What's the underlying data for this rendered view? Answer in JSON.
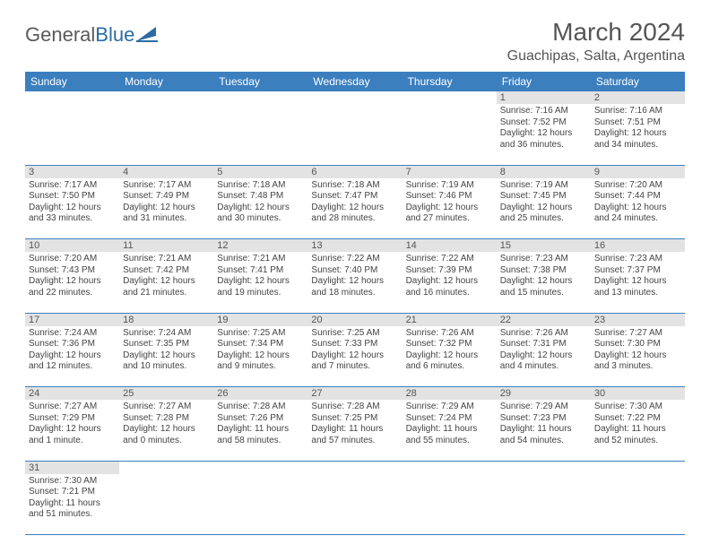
{
  "logo": {
    "text1": "General",
    "text2": "Blue"
  },
  "title": "March 2024",
  "location": "Guachipas, Salta, Argentina",
  "weekdays": [
    "Sunday",
    "Monday",
    "Tuesday",
    "Wednesday",
    "Thursday",
    "Friday",
    "Saturday"
  ],
  "colors": {
    "header_bg": "#3b7fbf",
    "header_fg": "#ffffff",
    "daynum_bg": "#e3e3e3",
    "rule": "#3b7fbf",
    "text": "#444444",
    "title": "#555555"
  },
  "weeks": [
    [
      null,
      null,
      null,
      null,
      null,
      {
        "n": "1",
        "sr": "7:16 AM",
        "ss": "7:52 PM",
        "dl": "12 hours and 36 minutes."
      },
      {
        "n": "2",
        "sr": "7:16 AM",
        "ss": "7:51 PM",
        "dl": "12 hours and 34 minutes."
      }
    ],
    [
      {
        "n": "3",
        "sr": "7:17 AM",
        "ss": "7:50 PM",
        "dl": "12 hours and 33 minutes."
      },
      {
        "n": "4",
        "sr": "7:17 AM",
        "ss": "7:49 PM",
        "dl": "12 hours and 31 minutes."
      },
      {
        "n": "5",
        "sr": "7:18 AM",
        "ss": "7:48 PM",
        "dl": "12 hours and 30 minutes."
      },
      {
        "n": "6",
        "sr": "7:18 AM",
        "ss": "7:47 PM",
        "dl": "12 hours and 28 minutes."
      },
      {
        "n": "7",
        "sr": "7:19 AM",
        "ss": "7:46 PM",
        "dl": "12 hours and 27 minutes."
      },
      {
        "n": "8",
        "sr": "7:19 AM",
        "ss": "7:45 PM",
        "dl": "12 hours and 25 minutes."
      },
      {
        "n": "9",
        "sr": "7:20 AM",
        "ss": "7:44 PM",
        "dl": "12 hours and 24 minutes."
      }
    ],
    [
      {
        "n": "10",
        "sr": "7:20 AM",
        "ss": "7:43 PM",
        "dl": "12 hours and 22 minutes."
      },
      {
        "n": "11",
        "sr": "7:21 AM",
        "ss": "7:42 PM",
        "dl": "12 hours and 21 minutes."
      },
      {
        "n": "12",
        "sr": "7:21 AM",
        "ss": "7:41 PM",
        "dl": "12 hours and 19 minutes."
      },
      {
        "n": "13",
        "sr": "7:22 AM",
        "ss": "7:40 PM",
        "dl": "12 hours and 18 minutes."
      },
      {
        "n": "14",
        "sr": "7:22 AM",
        "ss": "7:39 PM",
        "dl": "12 hours and 16 minutes."
      },
      {
        "n": "15",
        "sr": "7:23 AM",
        "ss": "7:38 PM",
        "dl": "12 hours and 15 minutes."
      },
      {
        "n": "16",
        "sr": "7:23 AM",
        "ss": "7:37 PM",
        "dl": "12 hours and 13 minutes."
      }
    ],
    [
      {
        "n": "17",
        "sr": "7:24 AM",
        "ss": "7:36 PM",
        "dl": "12 hours and 12 minutes."
      },
      {
        "n": "18",
        "sr": "7:24 AM",
        "ss": "7:35 PM",
        "dl": "12 hours and 10 minutes."
      },
      {
        "n": "19",
        "sr": "7:25 AM",
        "ss": "7:34 PM",
        "dl": "12 hours and 9 minutes."
      },
      {
        "n": "20",
        "sr": "7:25 AM",
        "ss": "7:33 PM",
        "dl": "12 hours and 7 minutes."
      },
      {
        "n": "21",
        "sr": "7:26 AM",
        "ss": "7:32 PM",
        "dl": "12 hours and 6 minutes."
      },
      {
        "n": "22",
        "sr": "7:26 AM",
        "ss": "7:31 PM",
        "dl": "12 hours and 4 minutes."
      },
      {
        "n": "23",
        "sr": "7:27 AM",
        "ss": "7:30 PM",
        "dl": "12 hours and 3 minutes."
      }
    ],
    [
      {
        "n": "24",
        "sr": "7:27 AM",
        "ss": "7:29 PM",
        "dl": "12 hours and 1 minute."
      },
      {
        "n": "25",
        "sr": "7:27 AM",
        "ss": "7:28 PM",
        "dl": "12 hours and 0 minutes."
      },
      {
        "n": "26",
        "sr": "7:28 AM",
        "ss": "7:26 PM",
        "dl": "11 hours and 58 minutes."
      },
      {
        "n": "27",
        "sr": "7:28 AM",
        "ss": "7:25 PM",
        "dl": "11 hours and 57 minutes."
      },
      {
        "n": "28",
        "sr": "7:29 AM",
        "ss": "7:24 PM",
        "dl": "11 hours and 55 minutes."
      },
      {
        "n": "29",
        "sr": "7:29 AM",
        "ss": "7:23 PM",
        "dl": "11 hours and 54 minutes."
      },
      {
        "n": "30",
        "sr": "7:30 AM",
        "ss": "7:22 PM",
        "dl": "11 hours and 52 minutes."
      }
    ],
    [
      {
        "n": "31",
        "sr": "7:30 AM",
        "ss": "7:21 PM",
        "dl": "11 hours and 51 minutes."
      },
      null,
      null,
      null,
      null,
      null,
      null
    ]
  ],
  "labels": {
    "sunrise": "Sunrise:",
    "sunset": "Sunset:",
    "daylight": "Daylight:"
  }
}
